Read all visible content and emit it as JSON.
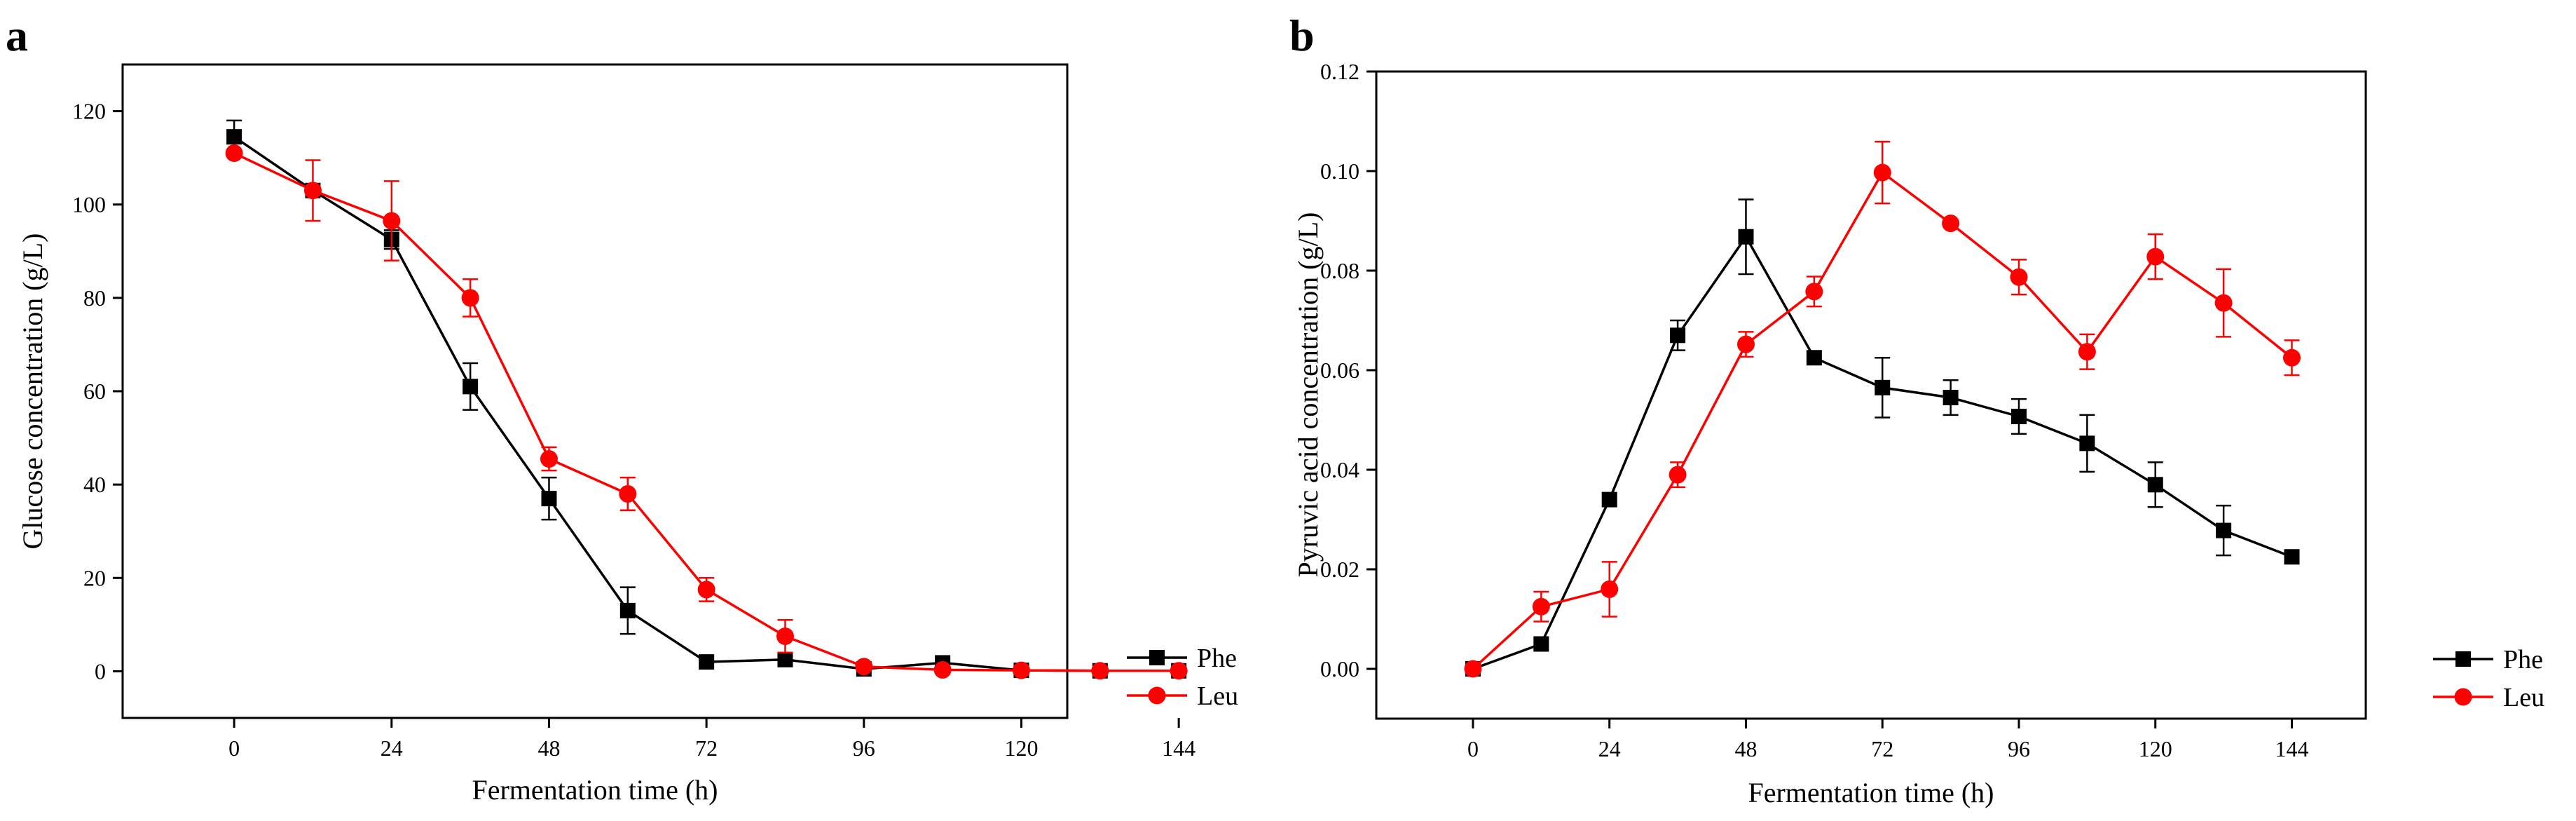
{
  "chart_data": [
    {
      "type": "line",
      "panel_label": "a",
      "xlabel": "Fermentation time (h)",
      "ylabel": "Glucose concentration (g/L)",
      "xlim": [
        -17,
        127
      ],
      "ylim": [
        -10,
        130
      ],
      "xticks": [
        0,
        24,
        48,
        72,
        96,
        120,
        144
      ],
      "yticks": [
        0,
        20,
        40,
        60,
        80,
        100,
        120
      ],
      "ytick_decimals": 0,
      "legend_position": "right-bottom",
      "series": [
        {
          "name": "Phe",
          "color": "#000000",
          "marker": "square",
          "x": [
            0,
            12,
            24,
            36,
            48,
            60,
            72,
            84,
            96,
            108,
            120,
            132,
            144
          ],
          "y": [
            114.5,
            103,
            92.5,
            61,
            37,
            13,
            2,
            2.5,
            0.5,
            1.8,
            0.2,
            0.1,
            0.1
          ],
          "err": [
            3.5,
            0,
            2,
            5,
            4.5,
            5,
            0,
            0,
            0,
            0,
            0,
            0,
            0
          ]
        },
        {
          "name": "Leu",
          "color": "#ff0000",
          "marker": "circle",
          "x": [
            0,
            12,
            24,
            36,
            48,
            60,
            72,
            84,
            96,
            108,
            120,
            132,
            144
          ],
          "y": [
            111,
            103,
            96.5,
            80,
            45.5,
            38,
            17.5,
            7.5,
            1,
            0.3,
            0.2,
            0.1,
            0.1
          ],
          "err": [
            0,
            6.5,
            8.5,
            4,
            2.5,
            3.5,
            2.5,
            3.5,
            0,
            0,
            0,
            0,
            0
          ]
        }
      ]
    },
    {
      "type": "line",
      "panel_label": "b",
      "xlabel": "Fermentation time (h)",
      "ylabel": "Pyruvic acid concentration (g/L)",
      "xlim": [
        -17,
        157
      ],
      "ylim": [
        -0.01,
        0.12
      ],
      "xticks": [
        0,
        24,
        48,
        72,
        96,
        120,
        144
      ],
      "yticks": [
        0.0,
        0.02,
        0.04,
        0.06,
        0.08,
        0.1,
        0.12
      ],
      "ytick_decimals": 2,
      "legend_position": "right-bottom",
      "series": [
        {
          "name": "Phe",
          "color": "#000000",
          "marker": "square",
          "x": [
            0,
            12,
            24,
            36,
            48,
            60,
            72,
            84,
            96,
            108,
            120,
            132,
            144
          ],
          "y": [
            0.0,
            0.005,
            0.034,
            0.067,
            0.0868,
            0.0625,
            0.0565,
            0.0545,
            0.0507,
            0.0453,
            0.037,
            0.0278,
            0.0225
          ],
          "err": [
            0,
            0,
            0,
            0.003,
            0.0075,
            0,
            0.006,
            0.0035,
            0.0035,
            0.0057,
            0.0045,
            0.005,
            0
          ]
        },
        {
          "name": "Leu",
          "color": "#ff0000",
          "marker": "circle",
          "x": [
            0,
            12,
            24,
            36,
            48,
            60,
            72,
            84,
            96,
            108,
            120,
            132,
            144
          ],
          "y": [
            0.0,
            0.0125,
            0.016,
            0.039,
            0.0652,
            0.0758,
            0.0997,
            0.0895,
            0.0787,
            0.0637,
            0.0828,
            0.0735,
            0.0625
          ],
          "err": [
            0,
            0.003,
            0.0055,
            0.0025,
            0.0025,
            0.003,
            0.0062,
            0,
            0.0035,
            0.0035,
            0.0045,
            0.0068,
            0.0035
          ]
        }
      ]
    }
  ]
}
